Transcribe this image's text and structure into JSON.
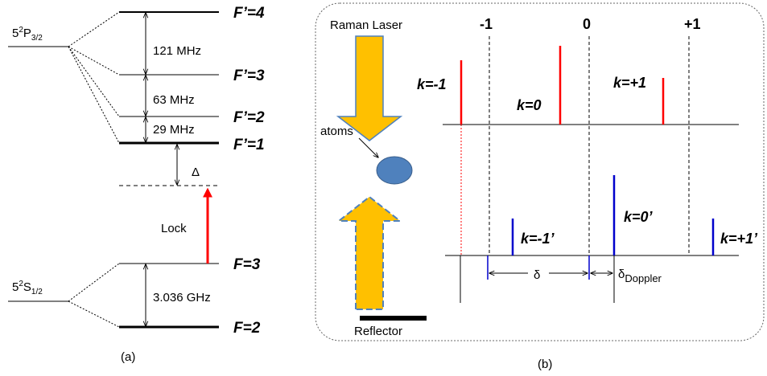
{
  "panel_a": {
    "upper_state": {
      "base": "5",
      "sup": "2",
      "letter": "P",
      "sub": "3/2"
    },
    "lower_state": {
      "base": "5",
      "sup": "2",
      "letter": "S",
      "sub": "1/2"
    },
    "levels": [
      "F’=4",
      "F’=3",
      "F’=2",
      "F’=1",
      "F=3",
      "F=2"
    ],
    "spacings": [
      "121 MHz",
      "63 MHz",
      "29 MHz",
      "3.036 GHz"
    ],
    "detuning": "Δ",
    "lock": "Lock",
    "caption": "(a)"
  },
  "panel_b": {
    "laser": "Raman Laser",
    "orders": [
      "-1",
      "0",
      "+1"
    ],
    "top_lines": [
      "k=-1",
      "k=0",
      "k=+1"
    ],
    "bottom_lines": [
      "k=-1’",
      "k=0’",
      "k=+1’"
    ],
    "atoms": "atoms",
    "delta": "δ",
    "doppler": {
      "symbol": "δ",
      "sub": "Doppler"
    },
    "reflector": "Reflector",
    "caption": "(b)"
  }
}
